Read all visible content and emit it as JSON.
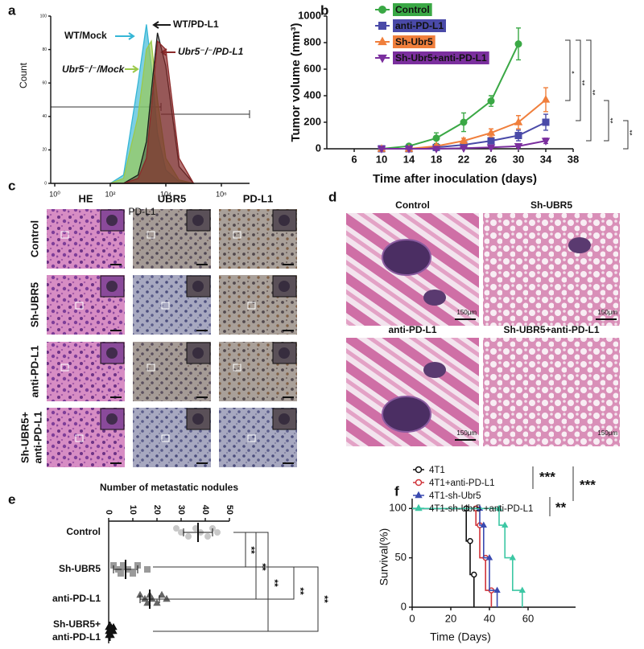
{
  "panel_labels": [
    "a",
    "b",
    "c",
    "d",
    "e",
    "f"
  ],
  "panel_c": {
    "columns": [
      "HE",
      "UBR5",
      "PD-L1"
    ],
    "rows": [
      "Control",
      "Sh-UBR5",
      "anti-PD-L1",
      [
        "Sh-UBR5+",
        "anti-PD-L1"
      ]
    ]
  },
  "panel_d": {
    "titles": [
      "Control",
      "Sh-UBR5",
      "anti-PD-L1",
      "Sh-UBR5+anti-PD-L1"
    ],
    "scale_bar": "150μm"
  },
  "chart_data": [
    {
      "type": "area",
      "ylabel": "Count",
      "xlabel": "PD-L1",
      "xscale": "log",
      "x": [
        100,
        300,
        1000,
        2000,
        3000,
        5000,
        10000,
        30000,
        100000
      ],
      "series": [
        {
          "name": "WT/Mock",
          "color": "#35b6d6",
          "values": [
            0,
            5,
            60,
            95,
            70,
            30,
            8,
            1,
            0
          ]
        },
        {
          "name": "Ubr5⁻/⁻/Mock",
          "color": "#9cc94a",
          "values": [
            0,
            3,
            40,
            80,
            85,
            50,
            15,
            2,
            0
          ]
        },
        {
          "name": "WT/PD-L1",
          "color": "#1a1a1a",
          "values": [
            0,
            0,
            5,
            25,
            55,
            90,
            70,
            10,
            0
          ]
        },
        {
          "name": "Ubr5⁻/⁻/PD-L1",
          "color": "#8b2a2a",
          "values": [
            0,
            0,
            3,
            15,
            45,
            85,
            80,
            15,
            0
          ]
        }
      ],
      "xlim": [
        1,
        1000000
      ],
      "xticks": [
        {
          "value": 1,
          "label": "10⁰"
        },
        {
          "value": 100,
          "label": "10²"
        },
        {
          "value": 10000,
          "label": "10⁴"
        },
        {
          "value": 1000000,
          "label": "10⁶"
        }
      ],
      "ylim": [
        0,
        100
      ],
      "yticks": [
        0,
        20,
        40,
        60,
        80,
        100
      ]
    },
    {
      "type": "line",
      "ylabel": "Tumor volume (mm³)",
      "xlabel": "Time after inoculation (days)",
      "x": [
        10,
        14,
        18,
        22,
        26,
        30,
        34
      ],
      "series": [
        {
          "name": "Control",
          "color": "#3aa845",
          "marker": "circle",
          "values": [
            0,
            20,
            80,
            200,
            360,
            790,
            null
          ],
          "errors": [
            5,
            10,
            40,
            70,
            40,
            120,
            null
          ]
        },
        {
          "name": "anti-PD-L1",
          "color": "#4a4aa8",
          "marker": "square",
          "values": [
            0,
            0,
            10,
            30,
            60,
            100,
            200
          ],
          "errors": [
            0,
            0,
            5,
            10,
            20,
            40,
            60
          ]
        },
        {
          "name": "Sh-Ubr5",
          "color": "#f07f3c",
          "marker": "triangle",
          "values": [
            0,
            0,
            20,
            60,
            120,
            200,
            370
          ],
          "errors": [
            0,
            0,
            10,
            20,
            30,
            50,
            90
          ]
        },
        {
          "name": "Sh-Ubr5+anti-PD-L1",
          "color": "#7b2f9e",
          "marker": "triangle-down",
          "values": [
            0,
            0,
            0,
            5,
            10,
            20,
            60
          ],
          "errors": [
            0,
            0,
            0,
            3,
            5,
            10,
            20
          ]
        }
      ],
      "xlim": [
        2,
        40
      ],
      "xticks": [
        6,
        10,
        14,
        18,
        22,
        26,
        30,
        34,
        38
      ],
      "ylim": [
        0,
        1000
      ],
      "yticks": [
        0,
        200,
        400,
        600,
        800,
        1000
      ],
      "annotations": [
        "*",
        "**",
        "**",
        "**",
        "**"
      ]
    },
    {
      "type": "dot",
      "title": "Number of metastatic nodules",
      "categories": [
        "Control",
        "Sh-UBR5",
        "anti-PD-L1",
        [
          "Sh-UBR5+",
          "anti-PD-L1"
        ]
      ],
      "points": [
        [
          28,
          30,
          33,
          36,
          38,
          41,
          43,
          45
        ],
        [
          2,
          4,
          5,
          6,
          8,
          10,
          12,
          16
        ],
        [
          13,
          15,
          16,
          17,
          18,
          20,
          22,
          24
        ],
        [
          0,
          0,
          0,
          1,
          1,
          1,
          2,
          2
        ]
      ],
      "means": [
        37,
        7,
        17,
        0.5
      ],
      "sd": [
        6,
        5,
        4,
        1
      ],
      "colors": [
        "#c8c8c8",
        "#9a9a9a",
        "#666666",
        "#111111"
      ],
      "markers": [
        "circle",
        "square",
        "triangle",
        "triangle"
      ],
      "xlim": [
        0,
        50
      ],
      "xticks": [
        0,
        10,
        20,
        30,
        40,
        50
      ],
      "annotations": [
        "**",
        "**",
        "**",
        "**",
        "**"
      ]
    },
    {
      "type": "step",
      "ylabel": "Survival(%)",
      "xlabel": "Time (Days)",
      "series": [
        {
          "name": "4T1",
          "color": "#111111",
          "marker": "circle",
          "x": [
            0,
            28,
            30,
            32
          ],
          "values": [
            100,
            67,
            33,
            0
          ]
        },
        {
          "name": "4T1+anti-PD-L1",
          "color": "#d0343a",
          "marker": "circle",
          "x": [
            0,
            33,
            35,
            38,
            41
          ],
          "values": [
            100,
            83,
            50,
            17,
            0
          ]
        },
        {
          "name": "4T1-sh-Ubr5",
          "color": "#3a4ab0",
          "marker": "triangle",
          "x": [
            0,
            35,
            37,
            40,
            44
          ],
          "values": [
            100,
            83,
            50,
            17,
            0
          ]
        },
        {
          "name": "4T1-sh-Ubr5 +anti-PD-L1",
          "color": "#3cc7a4",
          "marker": "triangle",
          "x": [
            0,
            45,
            48,
            52,
            57
          ],
          "values": [
            100,
            83,
            50,
            17,
            0
          ]
        }
      ],
      "xlim": [
        0,
        80
      ],
      "xticks": [
        0,
        20,
        40,
        60
      ],
      "ylim": [
        0,
        110
      ],
      "yticks": [
        0,
        50,
        100
      ],
      "annotations": [
        "***",
        "***",
        "**"
      ]
    }
  ]
}
